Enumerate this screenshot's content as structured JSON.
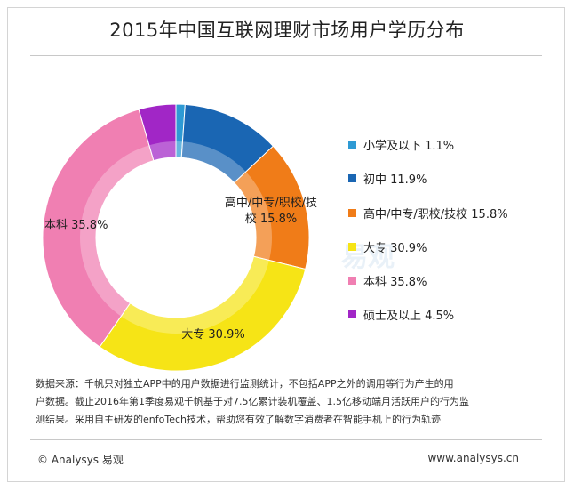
{
  "header": {
    "title": "2015年中国互联网理财市场用户学历分布"
  },
  "chart_data": {
    "type": "pie",
    "style": "donut",
    "categories": [
      "小学及以下",
      "初中",
      "高中/中专/职校/技校",
      "大专",
      "本科",
      "硕士及以上"
    ],
    "values": [
      1.1,
      11.9,
      15.8,
      30.9,
      35.8,
      4.5
    ],
    "unit": "%",
    "colors": [
      "#2e9ad4",
      "#1a66b3",
      "#f07c18",
      "#f6e416",
      "#f07fb2",
      "#a126c6"
    ],
    "legend_position": "right",
    "legend_labels": [
      "小学及以下  1.1%",
      "初中  11.9%",
      "高中/中专/职校/技校  15.8%",
      "大专  30.9%",
      "本科  35.8%",
      "硕士及以上  4.5%"
    ],
    "slice_labels": [
      {
        "index": 2,
        "lines": [
          "高中/中专/职校/技",
          "校  15.8%"
        ]
      },
      {
        "index": 3,
        "lines": [
          "大专  30.9%"
        ]
      },
      {
        "index": 4,
        "lines": [
          "本科  35.8%"
        ]
      }
    ]
  },
  "note": {
    "lines": [
      "数据来源：千帆只对独立APP中的用户数据进行监测统计，不包括APP之外的调用等行为产生的用",
      "户数据。截止2016年第1季度易观千帆基于对7.5亿累计装机覆盖、1.5亿移动端月活跃用户的行为监",
      "测结果。采用自主研发的enfoTech技术，帮助您有效了解数字消费者在智能手机上的行为轨迹"
    ]
  },
  "footer": {
    "copyright": "© Analysys 易观",
    "website": "www.analysys.cn"
  },
  "watermark": {
    "text": "易观"
  }
}
